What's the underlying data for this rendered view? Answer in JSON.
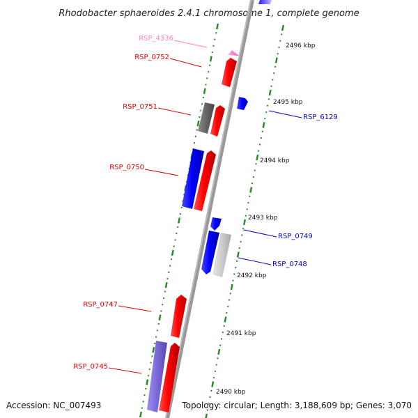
{
  "title": "Rhodobacter sphaeroides 2.4.1 chromosome 1, complete genome",
  "footer": {
    "accession": "Accession: NC_007493",
    "summary": "Topology: circular; Length: 3,188,609 bp; Genes: 3,070"
  },
  "colors": {
    "forward_gene": "#ff0000",
    "reverse_gene": "#0000ff",
    "pseudo_gene": "#ff80c0",
    "grey_gene": "#666666",
    "light_grey_gene": "#c8c8c8",
    "purple_gene": "#7b68d8",
    "tick": "#2a8a2a",
    "backbone": "#999999"
  },
  "gene_labels": [
    {
      "text": "RSP_4336",
      "strand": "pseudo"
    },
    {
      "text": "RSP_0752",
      "strand": "forward"
    },
    {
      "text": "RSP_0751",
      "strand": "forward"
    },
    {
      "text": "RSP_0750",
      "strand": "forward"
    },
    {
      "text": "RSP_0747",
      "strand": "forward"
    },
    {
      "text": "RSP_0745",
      "strand": "forward"
    },
    {
      "text": "RSP_6129",
      "strand": "reverse"
    },
    {
      "text": "RSP_0749",
      "strand": "reverse"
    },
    {
      "text": "RSP_0748",
      "strand": "reverse"
    }
  ],
  "scale_labels": [
    "2496 kbp",
    "2495 kbp",
    "2494 kbp",
    "2493 kbp",
    "2492 kbp",
    "2491 kbp",
    "2490 kbp"
  ]
}
